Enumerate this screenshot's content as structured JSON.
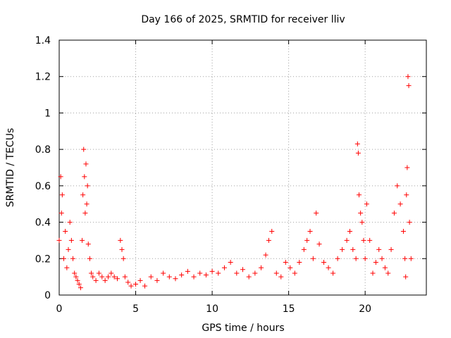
{
  "chart_data": {
    "type": "scatter",
    "title": "Day 166 of 2025, SRMTID for receiver lliv",
    "xlabel": "GPS time / hours",
    "ylabel": "SRMTID / TECUs",
    "xlim": [
      0,
      24
    ],
    "ylim": [
      0,
      1.4
    ],
    "xticks": [
      0,
      5,
      10,
      15,
      20
    ],
    "xtick_labels": [
      "0",
      "5",
      "10",
      "15",
      "20"
    ],
    "yticks": [
      0,
      0.2,
      0.4,
      0.6,
      0.8,
      1,
      1.2,
      1.4
    ],
    "ytick_labels": [
      "0",
      "0.2",
      "0.4",
      "0.6",
      "0.8",
      "1",
      "1.2",
      "1.4"
    ],
    "grid": true,
    "marker": "plus",
    "marker_color": "#ff0000",
    "series": [
      {
        "name": "SRMTID",
        "x": [
          0.0,
          0.1,
          0.15,
          0.2,
          0.3,
          0.4,
          0.5,
          0.6,
          0.7,
          0.8,
          0.9,
          1.0,
          1.1,
          1.2,
          1.3,
          1.4,
          1.5,
          1.55,
          1.6,
          1.65,
          1.7,
          1.75,
          1.8,
          1.85,
          1.9,
          2.0,
          2.1,
          2.2,
          2.4,
          2.6,
          2.8,
          3.0,
          3.2,
          3.4,
          3.6,
          3.8,
          4.0,
          4.1,
          4.2,
          4.3,
          4.5,
          4.7,
          5.0,
          5.3,
          5.6,
          6.0,
          6.4,
          6.8,
          7.2,
          7.6,
          8.0,
          8.4,
          8.8,
          9.2,
          9.6,
          10.0,
          10.4,
          10.8,
          11.2,
          11.6,
          12.0,
          12.4,
          12.8,
          13.2,
          13.5,
          13.7,
          13.9,
          14.2,
          14.5,
          14.8,
          15.1,
          15.4,
          15.7,
          16.0,
          16.2,
          16.4,
          16.6,
          16.8,
          17.0,
          17.3,
          17.6,
          17.9,
          18.2,
          18.5,
          18.8,
          19.0,
          19.2,
          19.4,
          19.5,
          19.55,
          19.6,
          19.7,
          19.8,
          19.9,
          20.0,
          20.1,
          20.3,
          20.5,
          20.7,
          20.9,
          21.1,
          21.3,
          21.5,
          21.7,
          21.9,
          22.1,
          22.3,
          22.5,
          22.6,
          22.65,
          22.7,
          22.75,
          22.8,
          22.85,
          22.9,
          23.0
        ],
        "values": [
          0.3,
          0.65,
          0.45,
          0.55,
          0.2,
          0.35,
          0.15,
          0.25,
          0.4,
          0.3,
          0.2,
          0.12,
          0.1,
          0.08,
          0.06,
          0.04,
          0.3,
          0.55,
          0.8,
          0.65,
          0.45,
          0.72,
          0.5,
          0.6,
          0.28,
          0.2,
          0.12,
          0.1,
          0.08,
          0.12,
          0.1,
          0.08,
          0.1,
          0.12,
          0.1,
          0.09,
          0.3,
          0.25,
          0.2,
          0.1,
          0.07,
          0.05,
          0.06,
          0.08,
          0.05,
          0.1,
          0.08,
          0.12,
          0.1,
          0.09,
          0.11,
          0.13,
          0.1,
          0.12,
          0.11,
          0.13,
          0.12,
          0.15,
          0.18,
          0.12,
          0.14,
          0.1,
          0.12,
          0.15,
          0.22,
          0.3,
          0.35,
          0.12,
          0.1,
          0.18,
          0.15,
          0.12,
          0.18,
          0.25,
          0.3,
          0.35,
          0.2,
          0.45,
          0.28,
          0.18,
          0.15,
          0.12,
          0.2,
          0.25,
          0.3,
          0.35,
          0.25,
          0.2,
          0.83,
          0.78,
          0.55,
          0.45,
          0.4,
          0.3,
          0.2,
          0.5,
          0.3,
          0.12,
          0.18,
          0.25,
          0.2,
          0.15,
          0.12,
          0.25,
          0.45,
          0.6,
          0.5,
          0.35,
          0.2,
          0.1,
          0.55,
          0.7,
          1.2,
          1.15,
          0.4,
          0.2
        ]
      }
    ]
  }
}
